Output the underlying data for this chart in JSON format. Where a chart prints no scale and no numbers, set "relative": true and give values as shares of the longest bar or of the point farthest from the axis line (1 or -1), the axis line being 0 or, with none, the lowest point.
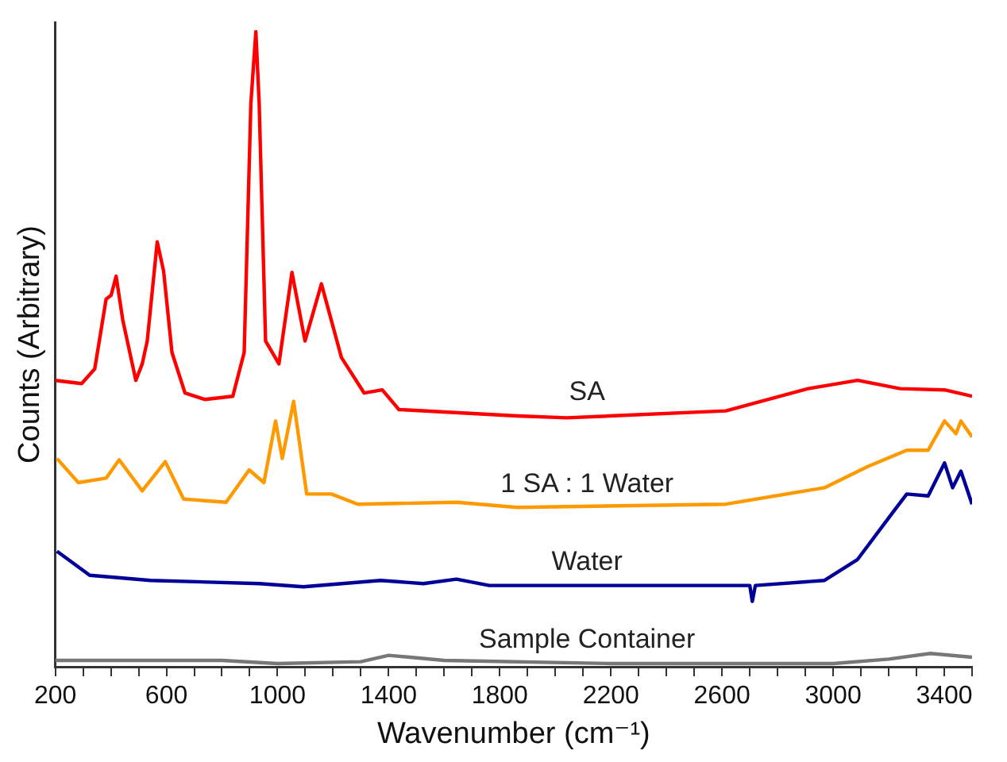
{
  "chart_data": {
    "type": "line",
    "relative": true,
    "xlabel": "Wavenumber (cm⁻¹)",
    "ylabel": "Counts (Arbitrary)",
    "xlim": [
      200,
      3500
    ],
    "xticks": [
      200,
      {
        "value": 300,
        "label": null
      },
      {
        "value": 400,
        "label": null
      },
      {
        "value": 500,
        "label": null
      },
      600,
      {
        "value": 700,
        "label": null
      },
      {
        "value": 800,
        "label": null
      },
      {
        "value": 900,
        "label": null
      },
      1000,
      {
        "value": 1100,
        "label": null
      },
      {
        "value": 1200,
        "label": null
      },
      {
        "value": 1300,
        "label": null
      },
      1400,
      {
        "value": 1500,
        "label": null
      },
      {
        "value": 1600,
        "label": null
      },
      {
        "value": 1700,
        "label": null
      },
      1800,
      {
        "value": 1900,
        "label": null
      },
      {
        "value": 2000,
        "label": null
      },
      {
        "value": 2100,
        "label": null
      },
      2200,
      {
        "value": 2300,
        "label": null
      },
      {
        "value": 2400,
        "label": null
      },
      {
        "value": 2500,
        "label": null
      },
      2600,
      {
        "value": 2700,
        "label": null
      },
      {
        "value": 2800,
        "label": null
      },
      {
        "value": 2900,
        "label": null
      },
      3000,
      {
        "value": 3100,
        "label": null
      },
      {
        "value": 3200,
        "label": null
      },
      {
        "value": 3300,
        "label": null
      },
      3400,
      {
        "value": 3500,
        "label": null
      }
    ],
    "grid": false,
    "legend": false,
    "marker": "none",
    "line_style": "solid",
    "series": [
      {
        "name": "SA",
        "color": "#ff0000",
        "x": [
          200,
          295,
          342,
          383,
          401,
          419,
          443,
          490,
          513,
          531,
          567,
          590,
          620,
          667,
          738,
          839,
          880,
          904,
          922,
          934,
          957,
          1005,
          1052,
          1099,
          1158,
          1230,
          1312,
          1377,
          1437,
          1863,
          2041,
          2614,
          2910,
          3088,
          3241,
          3401,
          3500
        ],
        "values": [
          0.451,
          0.446,
          0.469,
          0.579,
          0.585,
          0.615,
          0.546,
          0.451,
          0.477,
          0.513,
          0.669,
          0.623,
          0.495,
          0.431,
          0.421,
          0.426,
          0.495,
          0.887,
          1.0,
          0.887,
          0.513,
          0.477,
          0.621,
          0.513,
          0.603,
          0.487,
          0.431,
          0.436,
          0.405,
          0.395,
          0.392,
          0.403,
          0.438,
          0.451,
          0.438,
          0.436,
          0.426
        ]
      },
      {
        "name": "1 SA : 1 Water",
        "color": "#ff9900",
        "x": [
          206,
          283,
          383,
          430,
          513,
          596,
          662,
          815,
          898,
          951,
          993,
          1017,
          1058,
          1105,
          1194,
          1289,
          1644,
          1863,
          2614,
          2969,
          3123,
          3265,
          3342,
          3401,
          3442,
          3460,
          3500
        ],
        "values": [
          0.328,
          0.29,
          0.297,
          0.326,
          0.277,
          0.323,
          0.264,
          0.259,
          0.31,
          0.29,
          0.387,
          0.328,
          0.418,
          0.272,
          0.272,
          0.256,
          0.259,
          0.251,
          0.256,
          0.282,
          0.315,
          0.341,
          0.341,
          0.387,
          0.367,
          0.387,
          0.362
        ]
      },
      {
        "name": "Water",
        "color": "#000099",
        "x": [
          206,
          324,
          543,
          934,
          1093,
          1371,
          1525,
          1644,
          1762,
          1863,
          2700,
          2709,
          2720,
          2969,
          3088,
          3206,
          3265,
          3342,
          3401,
          3430,
          3460,
          3500
        ],
        "values": [
          0.182,
          0.144,
          0.136,
          0.131,
          0.126,
          0.136,
          0.131,
          0.138,
          0.128,
          0.128,
          0.128,
          0.103,
          0.128,
          0.136,
          0.169,
          0.238,
          0.272,
          0.269,
          0.321,
          0.282,
          0.308,
          0.256
        ]
      },
      {
        "name": "Sample Container",
        "color": "#777777",
        "x": [
          200,
          800,
          1000,
          1300,
          1400,
          1600,
          2200,
          3000,
          3200,
          3350,
          3500
        ],
        "values": [
          0.01,
          0.01,
          0.005,
          0.008,
          0.018,
          0.01,
          0.005,
          0.005,
          0.012,
          0.021,
          0.015
        ]
      }
    ]
  }
}
